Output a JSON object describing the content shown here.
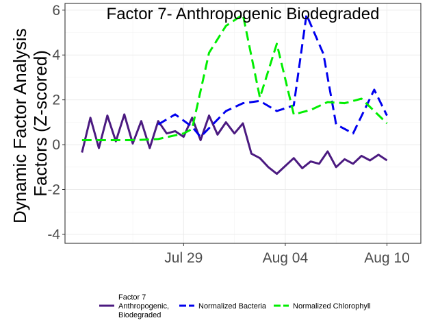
{
  "chart_data": {
    "type": "line",
    "title": "Factor 7- Anthropogenic Biodegraded",
    "xlabel": "",
    "ylabel_lines": [
      "Dynamic Factor Analysis",
      "Factors (Z-scored)"
    ],
    "xlim": [
      "2022-07-22",
      "2022-08-12"
    ],
    "ylim": [
      -4.4,
      6.3
    ],
    "x_ticks": [
      {
        "date": "2022-07-29",
        "label": "Jul 29"
      },
      {
        "date": "2022-08-04",
        "label": "Aug 04"
      },
      {
        "date": "2022-08-10",
        "label": "Aug 10"
      }
    ],
    "y_ticks": [
      {
        "value": -4,
        "label": "-4"
      },
      {
        "value": -2,
        "label": "-2"
      },
      {
        "value": 0,
        "label": "0"
      },
      {
        "value": 2,
        "label": "2"
      },
      {
        "value": 4,
        "label": "4"
      },
      {
        "value": 6,
        "label": "6"
      }
    ],
    "grid": true,
    "legend_position": "bottom",
    "series": [
      {
        "name": "Factor 7\nAnthropogenic,\nBiodegraded",
        "color": "#4b1a80",
        "dash": "solid",
        "points": [
          [
            "2022-07-23T00:00",
            -0.35
          ],
          [
            "2022-07-23T12:00",
            1.2
          ],
          [
            "2022-07-24T00:00",
            -0.15
          ],
          [
            "2022-07-24T12:00",
            1.3
          ],
          [
            "2022-07-25T00:00",
            0.15
          ],
          [
            "2022-07-25T12:00",
            1.35
          ],
          [
            "2022-07-26T00:00",
            0.05
          ],
          [
            "2022-07-26T12:00",
            1.05
          ],
          [
            "2022-07-27T00:00",
            -0.15
          ],
          [
            "2022-07-27T12:00",
            1.05
          ],
          [
            "2022-07-28T00:00",
            0.5
          ],
          [
            "2022-07-28T12:00",
            0.6
          ],
          [
            "2022-07-29T00:00",
            0.35
          ],
          [
            "2022-07-29T12:00",
            1.2
          ],
          [
            "2022-07-30T00:00",
            0.2
          ],
          [
            "2022-07-30T12:00",
            1.3
          ],
          [
            "2022-07-31T00:00",
            0.45
          ],
          [
            "2022-07-31T12:00",
            1.0
          ],
          [
            "2022-08-01T00:00",
            0.5
          ],
          [
            "2022-08-01T12:00",
            0.95
          ],
          [
            "2022-08-02T00:00",
            -0.4
          ],
          [
            "2022-08-02T12:00",
            -0.6
          ],
          [
            "2022-08-03T00:00",
            -1.0
          ],
          [
            "2022-08-03T12:00",
            -1.3
          ],
          [
            "2022-08-04T00:00",
            -0.95
          ],
          [
            "2022-08-04T12:00",
            -0.6
          ],
          [
            "2022-08-05T00:00",
            -1.05
          ],
          [
            "2022-08-05T12:00",
            -0.75
          ],
          [
            "2022-08-06T00:00",
            -0.85
          ],
          [
            "2022-08-06T12:00",
            -0.3
          ],
          [
            "2022-08-07T00:00",
            -1.0
          ],
          [
            "2022-08-07T12:00",
            -0.65
          ],
          [
            "2022-08-08T00:00",
            -0.85
          ],
          [
            "2022-08-08T12:00",
            -0.5
          ],
          [
            "2022-08-09T00:00",
            -0.7
          ],
          [
            "2022-08-09T12:00",
            -0.45
          ],
          [
            "2022-08-10T00:00",
            -0.7
          ]
        ]
      },
      {
        "name": "Normalized Bacteria",
        "color": "#0000ee",
        "dash": "dashed",
        "points": [
          [
            "2022-07-27T12:00",
            0.9
          ],
          [
            "2022-07-28T12:00",
            1.35
          ],
          [
            "2022-07-29T12:00",
            0.8
          ],
          [
            "2022-07-30T00:00",
            0.35
          ],
          [
            "2022-07-31T12:00",
            1.5
          ],
          [
            "2022-08-01T12:00",
            1.85
          ],
          [
            "2022-08-02T12:00",
            1.95
          ],
          [
            "2022-08-03T12:00",
            1.5
          ],
          [
            "2022-08-04T12:00",
            1.75
          ],
          [
            "2022-08-05T06:00",
            5.8
          ],
          [
            "2022-08-06T06:00",
            4.05
          ],
          [
            "2022-08-07T00:00",
            0.9
          ],
          [
            "2022-08-08T00:00",
            0.5
          ],
          [
            "2022-08-09T06:00",
            2.45
          ],
          [
            "2022-08-10T00:00",
            1.3
          ]
        ]
      },
      {
        "name": "Normalized Chlorophyll",
        "color": "#00ee00",
        "dash": "dashed",
        "points": [
          [
            "2022-07-23T00:00",
            0.2
          ],
          [
            "2022-07-24T12:00",
            0.2
          ],
          [
            "2022-07-26T00:00",
            0.2
          ],
          [
            "2022-07-27T12:00",
            0.25
          ],
          [
            "2022-07-29T00:00",
            0.5
          ],
          [
            "2022-07-29T12:00",
            0.7
          ],
          [
            "2022-07-30T12:00",
            4.1
          ],
          [
            "2022-07-31T12:00",
            5.3
          ],
          [
            "2022-08-01T12:00",
            5.8
          ],
          [
            "2022-08-02T12:00",
            2.1
          ],
          [
            "2022-08-03T12:00",
            4.5
          ],
          [
            "2022-08-04T12:00",
            1.35
          ],
          [
            "2022-08-05T12:00",
            1.55
          ],
          [
            "2022-08-06T12:00",
            1.9
          ],
          [
            "2022-08-07T12:00",
            1.85
          ],
          [
            "2022-08-08T12:00",
            2.05
          ],
          [
            "2022-08-10T00:00",
            0.95
          ]
        ]
      }
    ]
  }
}
